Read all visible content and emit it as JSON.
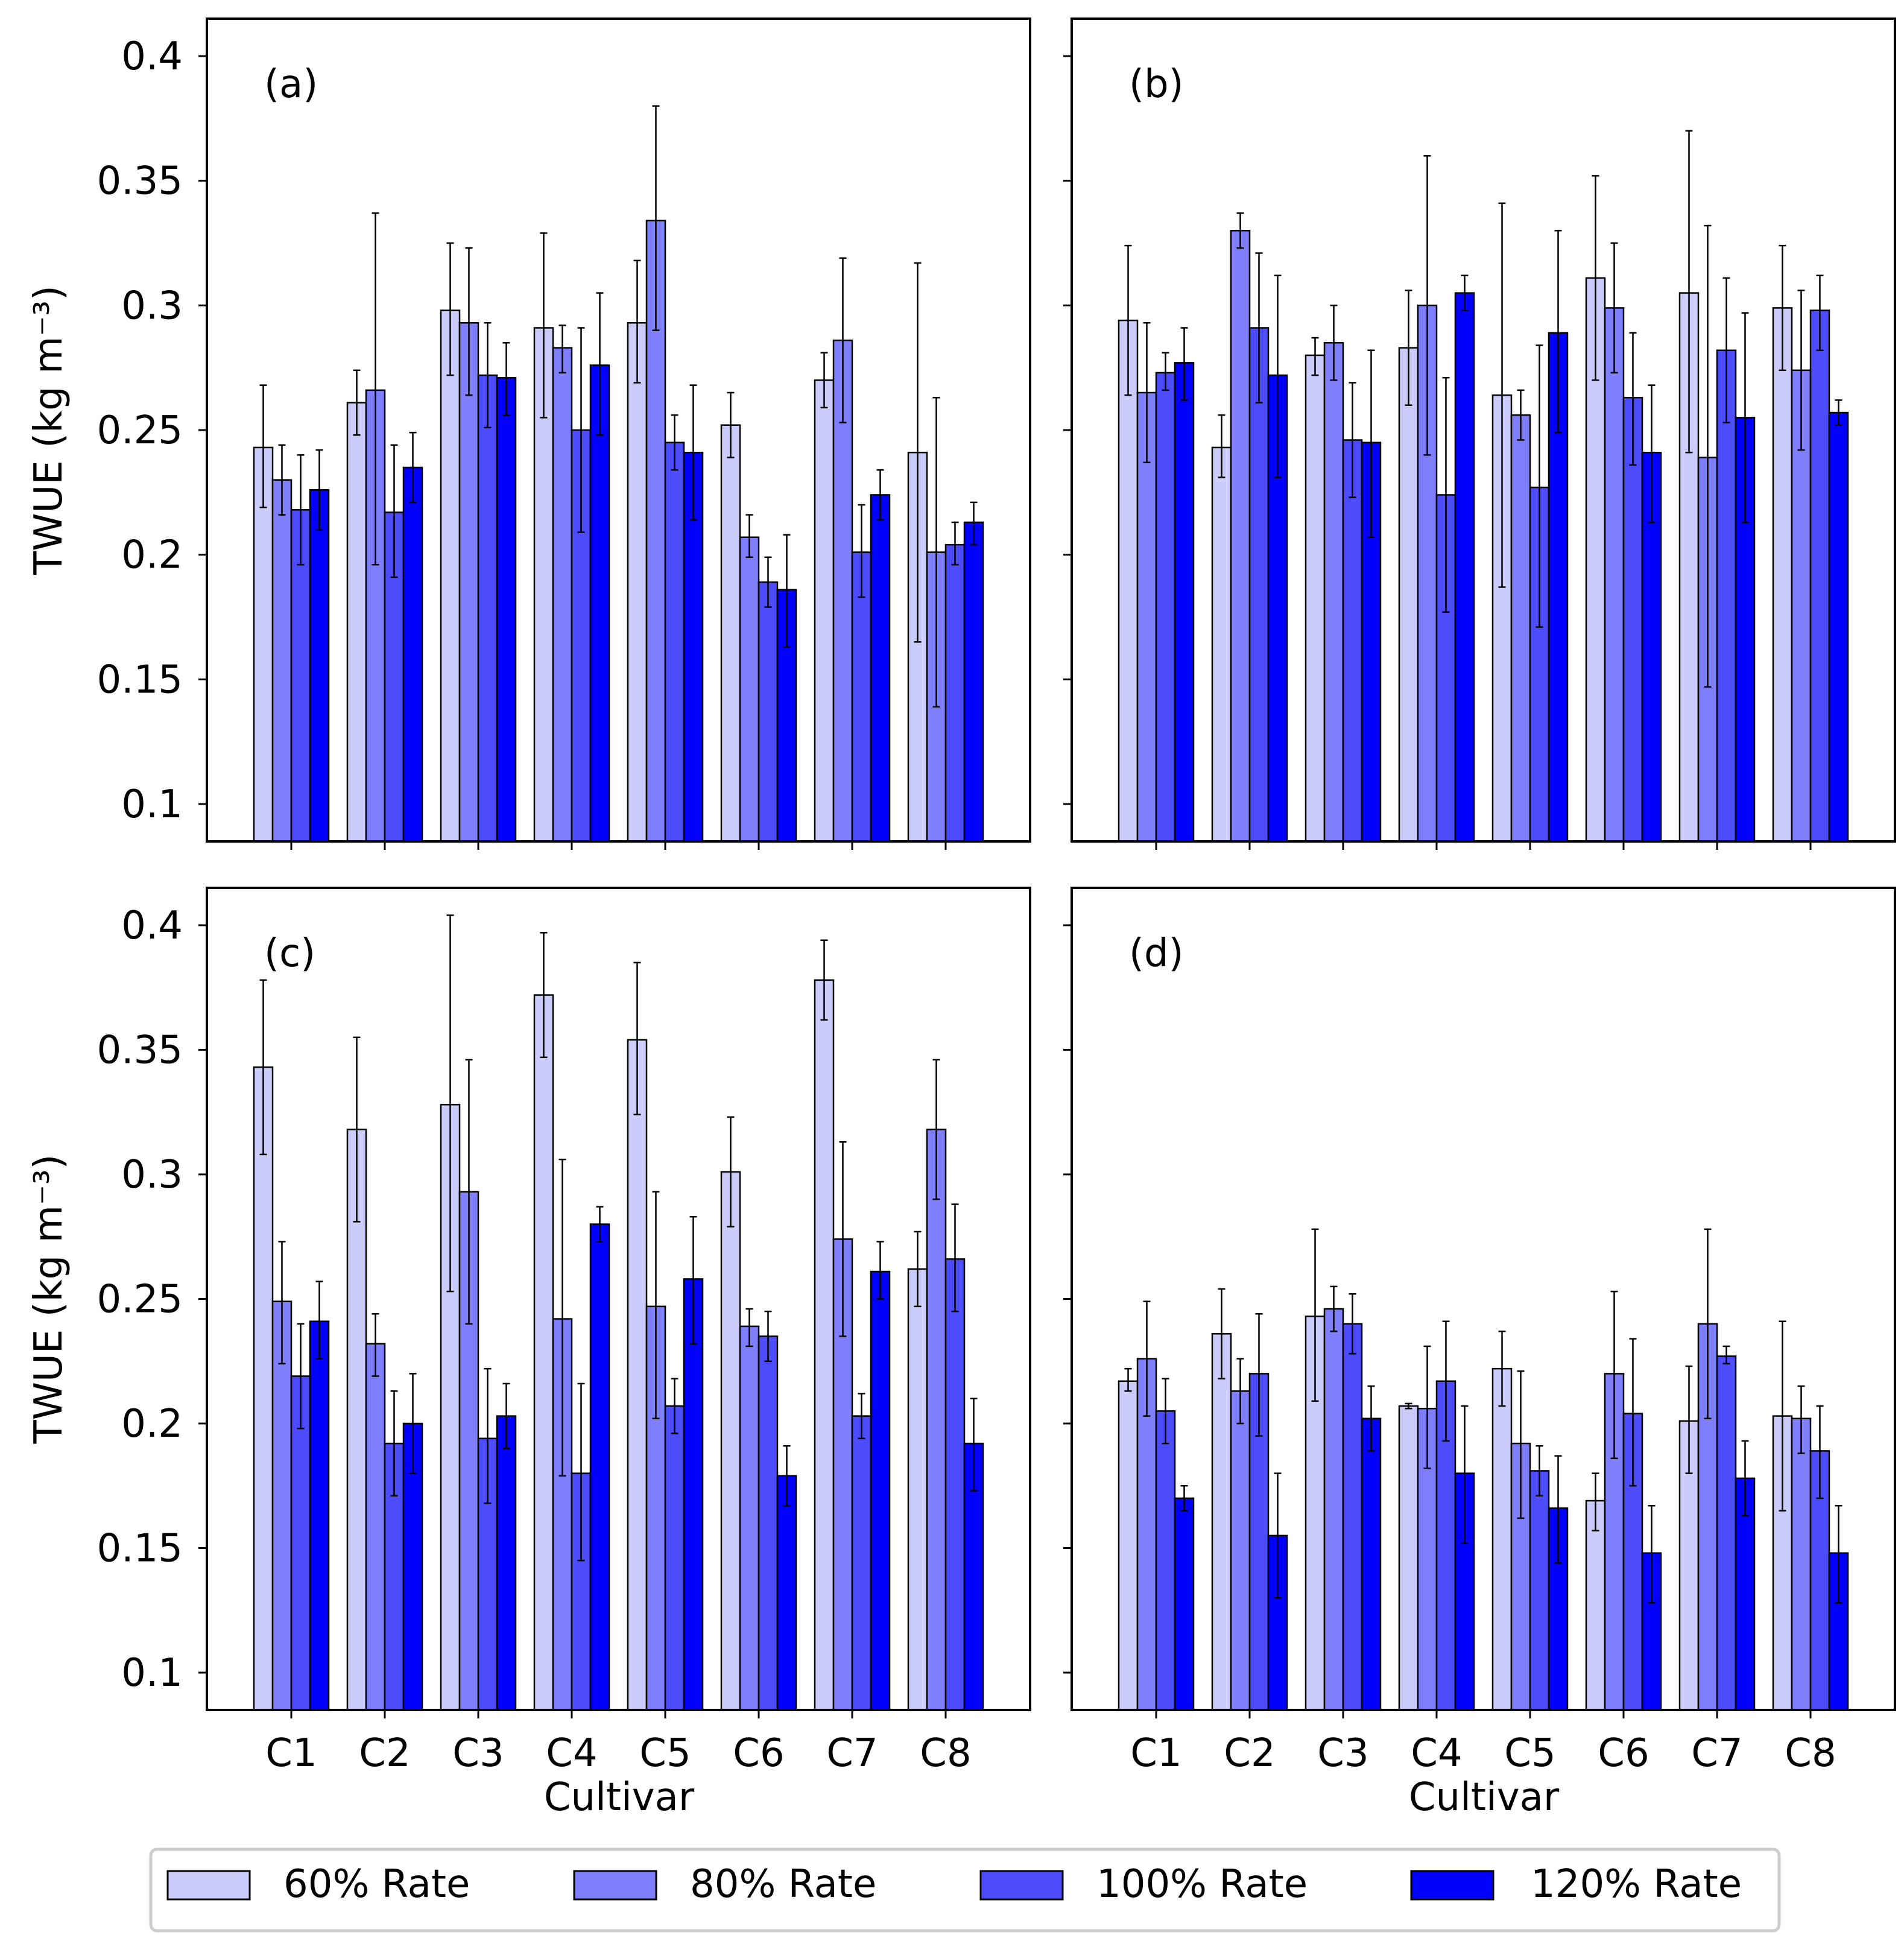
{
  "colors": {
    "s60": "#ccccfb",
    "s80": "#7f7ffb",
    "s100": "#4c4cfb",
    "s120": "#0000fb"
  },
  "chart_data": [
    {
      "type": "bar",
      "panel": "(a)",
      "ylabel": "TWUE (kg m⁻³)",
      "xlabel": "",
      "ylim": [
        0.085,
        0.415
      ],
      "categories": [
        "C1",
        "C2",
        "C3",
        "C4",
        "C5",
        "C6",
        "C7",
        "C8"
      ],
      "series": [
        {
          "name": "60% Rate",
          "values": [
            0.243,
            0.261,
            0.298,
            0.291,
            0.293,
            0.252,
            0.27,
            0.241
          ],
          "err_low": [
            0.219,
            0.248,
            0.272,
            0.255,
            0.269,
            0.239,
            0.259,
            0.165
          ],
          "err_high": [
            0.268,
            0.274,
            0.325,
            0.329,
            0.318,
            0.265,
            0.281,
            0.317
          ]
        },
        {
          "name": "80% Rate",
          "values": [
            0.23,
            0.266,
            0.293,
            0.283,
            0.334,
            0.207,
            0.286,
            0.201
          ],
          "err_low": [
            0.216,
            0.196,
            0.264,
            0.273,
            0.29,
            0.199,
            0.253,
            0.139
          ],
          "err_high": [
            0.244,
            0.337,
            0.323,
            0.292,
            0.38,
            0.216,
            0.319,
            0.263
          ]
        },
        {
          "name": "100% Rate",
          "values": [
            0.218,
            0.217,
            0.272,
            0.25,
            0.245,
            0.189,
            0.201,
            0.204
          ],
          "err_low": [
            0.196,
            0.191,
            0.251,
            0.209,
            0.234,
            0.179,
            0.183,
            0.196
          ],
          "err_high": [
            0.24,
            0.244,
            0.293,
            0.291,
            0.256,
            0.199,
            0.22,
            0.213
          ]
        },
        {
          "name": "120% Rate",
          "values": [
            0.226,
            0.235,
            0.271,
            0.276,
            0.241,
            0.186,
            0.224,
            0.213
          ],
          "err_low": [
            0.21,
            0.221,
            0.256,
            0.248,
            0.214,
            0.163,
            0.214,
            0.204
          ],
          "err_high": [
            0.242,
            0.249,
            0.285,
            0.305,
            0.268,
            0.208,
            0.234,
            0.221
          ]
        }
      ],
      "yticks": [
        "0.1",
        "0.15",
        "0.2",
        "0.25",
        "0.3",
        "0.35",
        "0.4"
      ]
    },
    {
      "type": "bar",
      "panel": "(b)",
      "ylabel": "",
      "xlabel": "",
      "ylim": [
        0.085,
        0.415
      ],
      "categories": [
        "C1",
        "C2",
        "C3",
        "C4",
        "C5",
        "C6",
        "C7",
        "C8"
      ],
      "series": [
        {
          "name": "60% Rate",
          "values": [
            0.294,
            0.243,
            0.28,
            0.283,
            0.264,
            0.311,
            0.305,
            0.299
          ],
          "err_low": [
            0.264,
            0.231,
            0.272,
            0.26,
            0.187,
            0.27,
            0.241,
            0.274
          ],
          "err_high": [
            0.324,
            0.256,
            0.287,
            0.306,
            0.341,
            0.352,
            0.37,
            0.324
          ]
        },
        {
          "name": "80% Rate",
          "values": [
            0.265,
            0.33,
            0.285,
            0.3,
            0.256,
            0.299,
            0.239,
            0.274
          ],
          "err_low": [
            0.237,
            0.323,
            0.27,
            0.24,
            0.246,
            0.273,
            0.147,
            0.242
          ],
          "err_high": [
            0.293,
            0.337,
            0.3,
            0.36,
            0.266,
            0.325,
            0.332,
            0.306
          ]
        },
        {
          "name": "100% Rate",
          "values": [
            0.273,
            0.291,
            0.246,
            0.224,
            0.227,
            0.263,
            0.282,
            0.298
          ],
          "err_low": [
            0.266,
            0.261,
            0.223,
            0.177,
            0.171,
            0.236,
            0.253,
            0.282
          ],
          "err_high": [
            0.281,
            0.321,
            0.269,
            0.271,
            0.284,
            0.289,
            0.311,
            0.312
          ]
        },
        {
          "name": "120% Rate",
          "values": [
            0.277,
            0.272,
            0.245,
            0.305,
            0.289,
            0.241,
            0.255,
            0.257
          ],
          "err_low": [
            0.262,
            0.231,
            0.207,
            0.298,
            0.249,
            0.213,
            0.213,
            0.252
          ],
          "err_high": [
            0.291,
            0.312,
            0.282,
            0.312,
            0.33,
            0.268,
            0.297,
            0.262
          ]
        }
      ],
      "yticks": [
        "0.1",
        "0.15",
        "0.2",
        "0.25",
        "0.3",
        "0.35",
        "0.4"
      ]
    },
    {
      "type": "bar",
      "panel": "(c)",
      "ylabel": "TWUE (kg m⁻³)",
      "xlabel": "Cultivar",
      "ylim": [
        0.085,
        0.415
      ],
      "categories": [
        "C1",
        "C2",
        "C3",
        "C4",
        "C5",
        "C6",
        "C7",
        "C8"
      ],
      "series": [
        {
          "name": "60% Rate",
          "values": [
            0.343,
            0.318,
            0.328,
            0.372,
            0.354,
            0.301,
            0.378,
            0.262
          ],
          "err_low": [
            0.308,
            0.281,
            0.253,
            0.347,
            0.324,
            0.279,
            0.362,
            0.247
          ],
          "err_high": [
            0.378,
            0.355,
            0.404,
            0.397,
            0.385,
            0.323,
            0.394,
            0.277
          ]
        },
        {
          "name": "80% Rate",
          "values": [
            0.249,
            0.232,
            0.293,
            0.242,
            0.247,
            0.239,
            0.274,
            0.318
          ],
          "err_low": [
            0.224,
            0.219,
            0.24,
            0.179,
            0.202,
            0.231,
            0.235,
            0.29
          ],
          "err_high": [
            0.273,
            0.244,
            0.346,
            0.306,
            0.293,
            0.246,
            0.313,
            0.346
          ]
        },
        {
          "name": "100% Rate",
          "values": [
            0.219,
            0.192,
            0.194,
            0.18,
            0.207,
            0.235,
            0.203,
            0.266
          ],
          "err_low": [
            0.198,
            0.171,
            0.168,
            0.145,
            0.196,
            0.225,
            0.194,
            0.245
          ],
          "err_high": [
            0.24,
            0.213,
            0.222,
            0.216,
            0.218,
            0.245,
            0.212,
            0.288
          ]
        },
        {
          "name": "120% Rate",
          "values": [
            0.241,
            0.2,
            0.203,
            0.28,
            0.258,
            0.179,
            0.261,
            0.192
          ],
          "err_low": [
            0.226,
            0.18,
            0.19,
            0.273,
            0.232,
            0.167,
            0.25,
            0.173
          ],
          "err_high": [
            0.257,
            0.22,
            0.216,
            0.287,
            0.283,
            0.191,
            0.273,
            0.21
          ]
        }
      ],
      "yticks": [
        "0.1",
        "0.15",
        "0.2",
        "0.25",
        "0.3",
        "0.35",
        "0.4"
      ]
    },
    {
      "type": "bar",
      "panel": "(d)",
      "ylabel": "",
      "xlabel": "Cultivar",
      "ylim": [
        0.085,
        0.415
      ],
      "categories": [
        "C1",
        "C2",
        "C3",
        "C4",
        "C5",
        "C6",
        "C7",
        "C8"
      ],
      "series": [
        {
          "name": "60% Rate",
          "values": [
            0.217,
            0.236,
            0.243,
            0.207,
            0.222,
            0.169,
            0.201,
            0.203
          ],
          "err_low": [
            0.213,
            0.218,
            0.209,
            0.206,
            0.207,
            0.157,
            0.18,
            0.165
          ],
          "err_high": [
            0.222,
            0.254,
            0.278,
            0.208,
            0.237,
            0.18,
            0.223,
            0.241
          ]
        },
        {
          "name": "80% Rate",
          "values": [
            0.226,
            0.213,
            0.246,
            0.206,
            0.192,
            0.22,
            0.24,
            0.202
          ],
          "err_low": [
            0.203,
            0.2,
            0.237,
            0.182,
            0.162,
            0.186,
            0.202,
            0.188
          ],
          "err_high": [
            0.249,
            0.226,
            0.255,
            0.231,
            0.221,
            0.253,
            0.278,
            0.215
          ]
        },
        {
          "name": "100% Rate",
          "values": [
            0.205,
            0.22,
            0.24,
            0.217,
            0.181,
            0.204,
            0.227,
            0.189
          ],
          "err_low": [
            0.192,
            0.195,
            0.228,
            0.193,
            0.171,
            0.175,
            0.224,
            0.17
          ],
          "err_high": [
            0.218,
            0.244,
            0.252,
            0.241,
            0.191,
            0.234,
            0.231,
            0.207
          ]
        },
        {
          "name": "120% Rate",
          "values": [
            0.17,
            0.155,
            0.202,
            0.18,
            0.166,
            0.148,
            0.178,
            0.148
          ],
          "err_low": [
            0.165,
            0.13,
            0.189,
            0.152,
            0.144,
            0.128,
            0.163,
            0.128
          ],
          "err_high": [
            0.175,
            0.18,
            0.215,
            0.207,
            0.187,
            0.167,
            0.193,
            0.167
          ]
        }
      ],
      "yticks": [
        "0.1",
        "0.15",
        "0.2",
        "0.25",
        "0.3",
        "0.35",
        "0.4"
      ]
    }
  ],
  "legend": {
    "items": [
      "60% Rate",
      "80% Rate",
      "100% Rate",
      "120% Rate"
    ],
    "placement": "bottom-center"
  }
}
